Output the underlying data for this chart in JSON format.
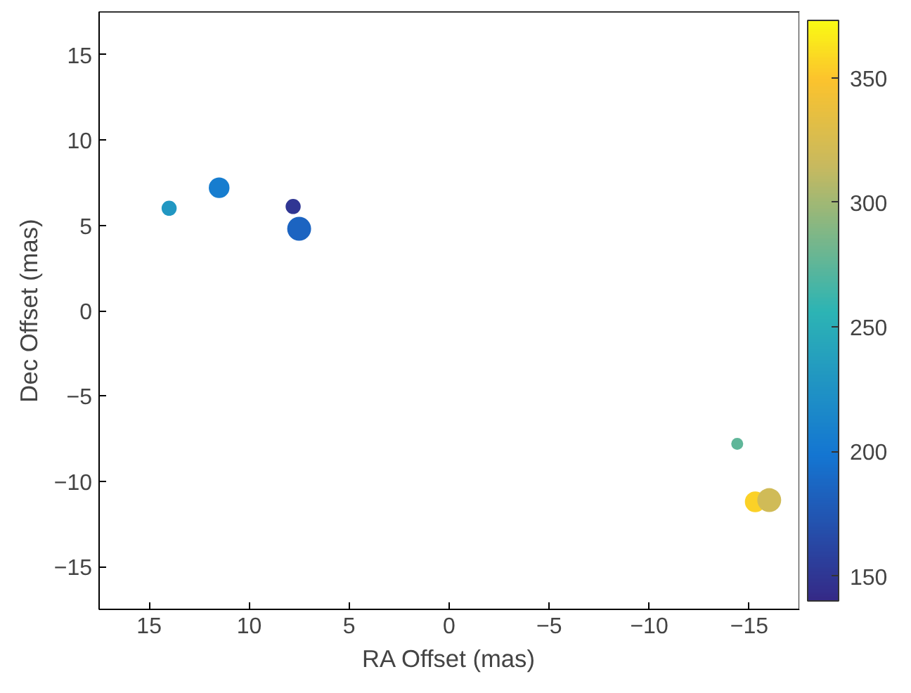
{
  "chart_data": {
    "type": "bubble",
    "xlabel": "RA Offset (mas)",
    "ylabel": "Dec Offset (mas)",
    "x": [
      14.0,
      11.5,
      7.8,
      7.5,
      -14.4,
      -15.3,
      -16.0
    ],
    "values": [
      6.0,
      7.2,
      6.1,
      4.8,
      -7.8,
      -11.2,
      -11.1
    ],
    "sizes": [
      0.4,
      0.75,
      0.4,
      1,
      0.25,
      0.75,
      1
    ],
    "cvalues": [
      230,
      205,
      150,
      185,
      275,
      355,
      320
    ],
    "xlim": [
      17.5,
      -17.5
    ],
    "xticks": [
      15,
      10,
      5,
      0,
      -5,
      -10,
      -15
    ],
    "ylim": [
      -17.5,
      17.5
    ],
    "yticks": [
      -15,
      -10,
      -5,
      0,
      5,
      10,
      15
    ],
    "clim": [
      140,
      373
    ],
    "cticks": [
      150,
      200,
      250,
      300,
      350
    ],
    "grid": false,
    "marker": "circle"
  }
}
